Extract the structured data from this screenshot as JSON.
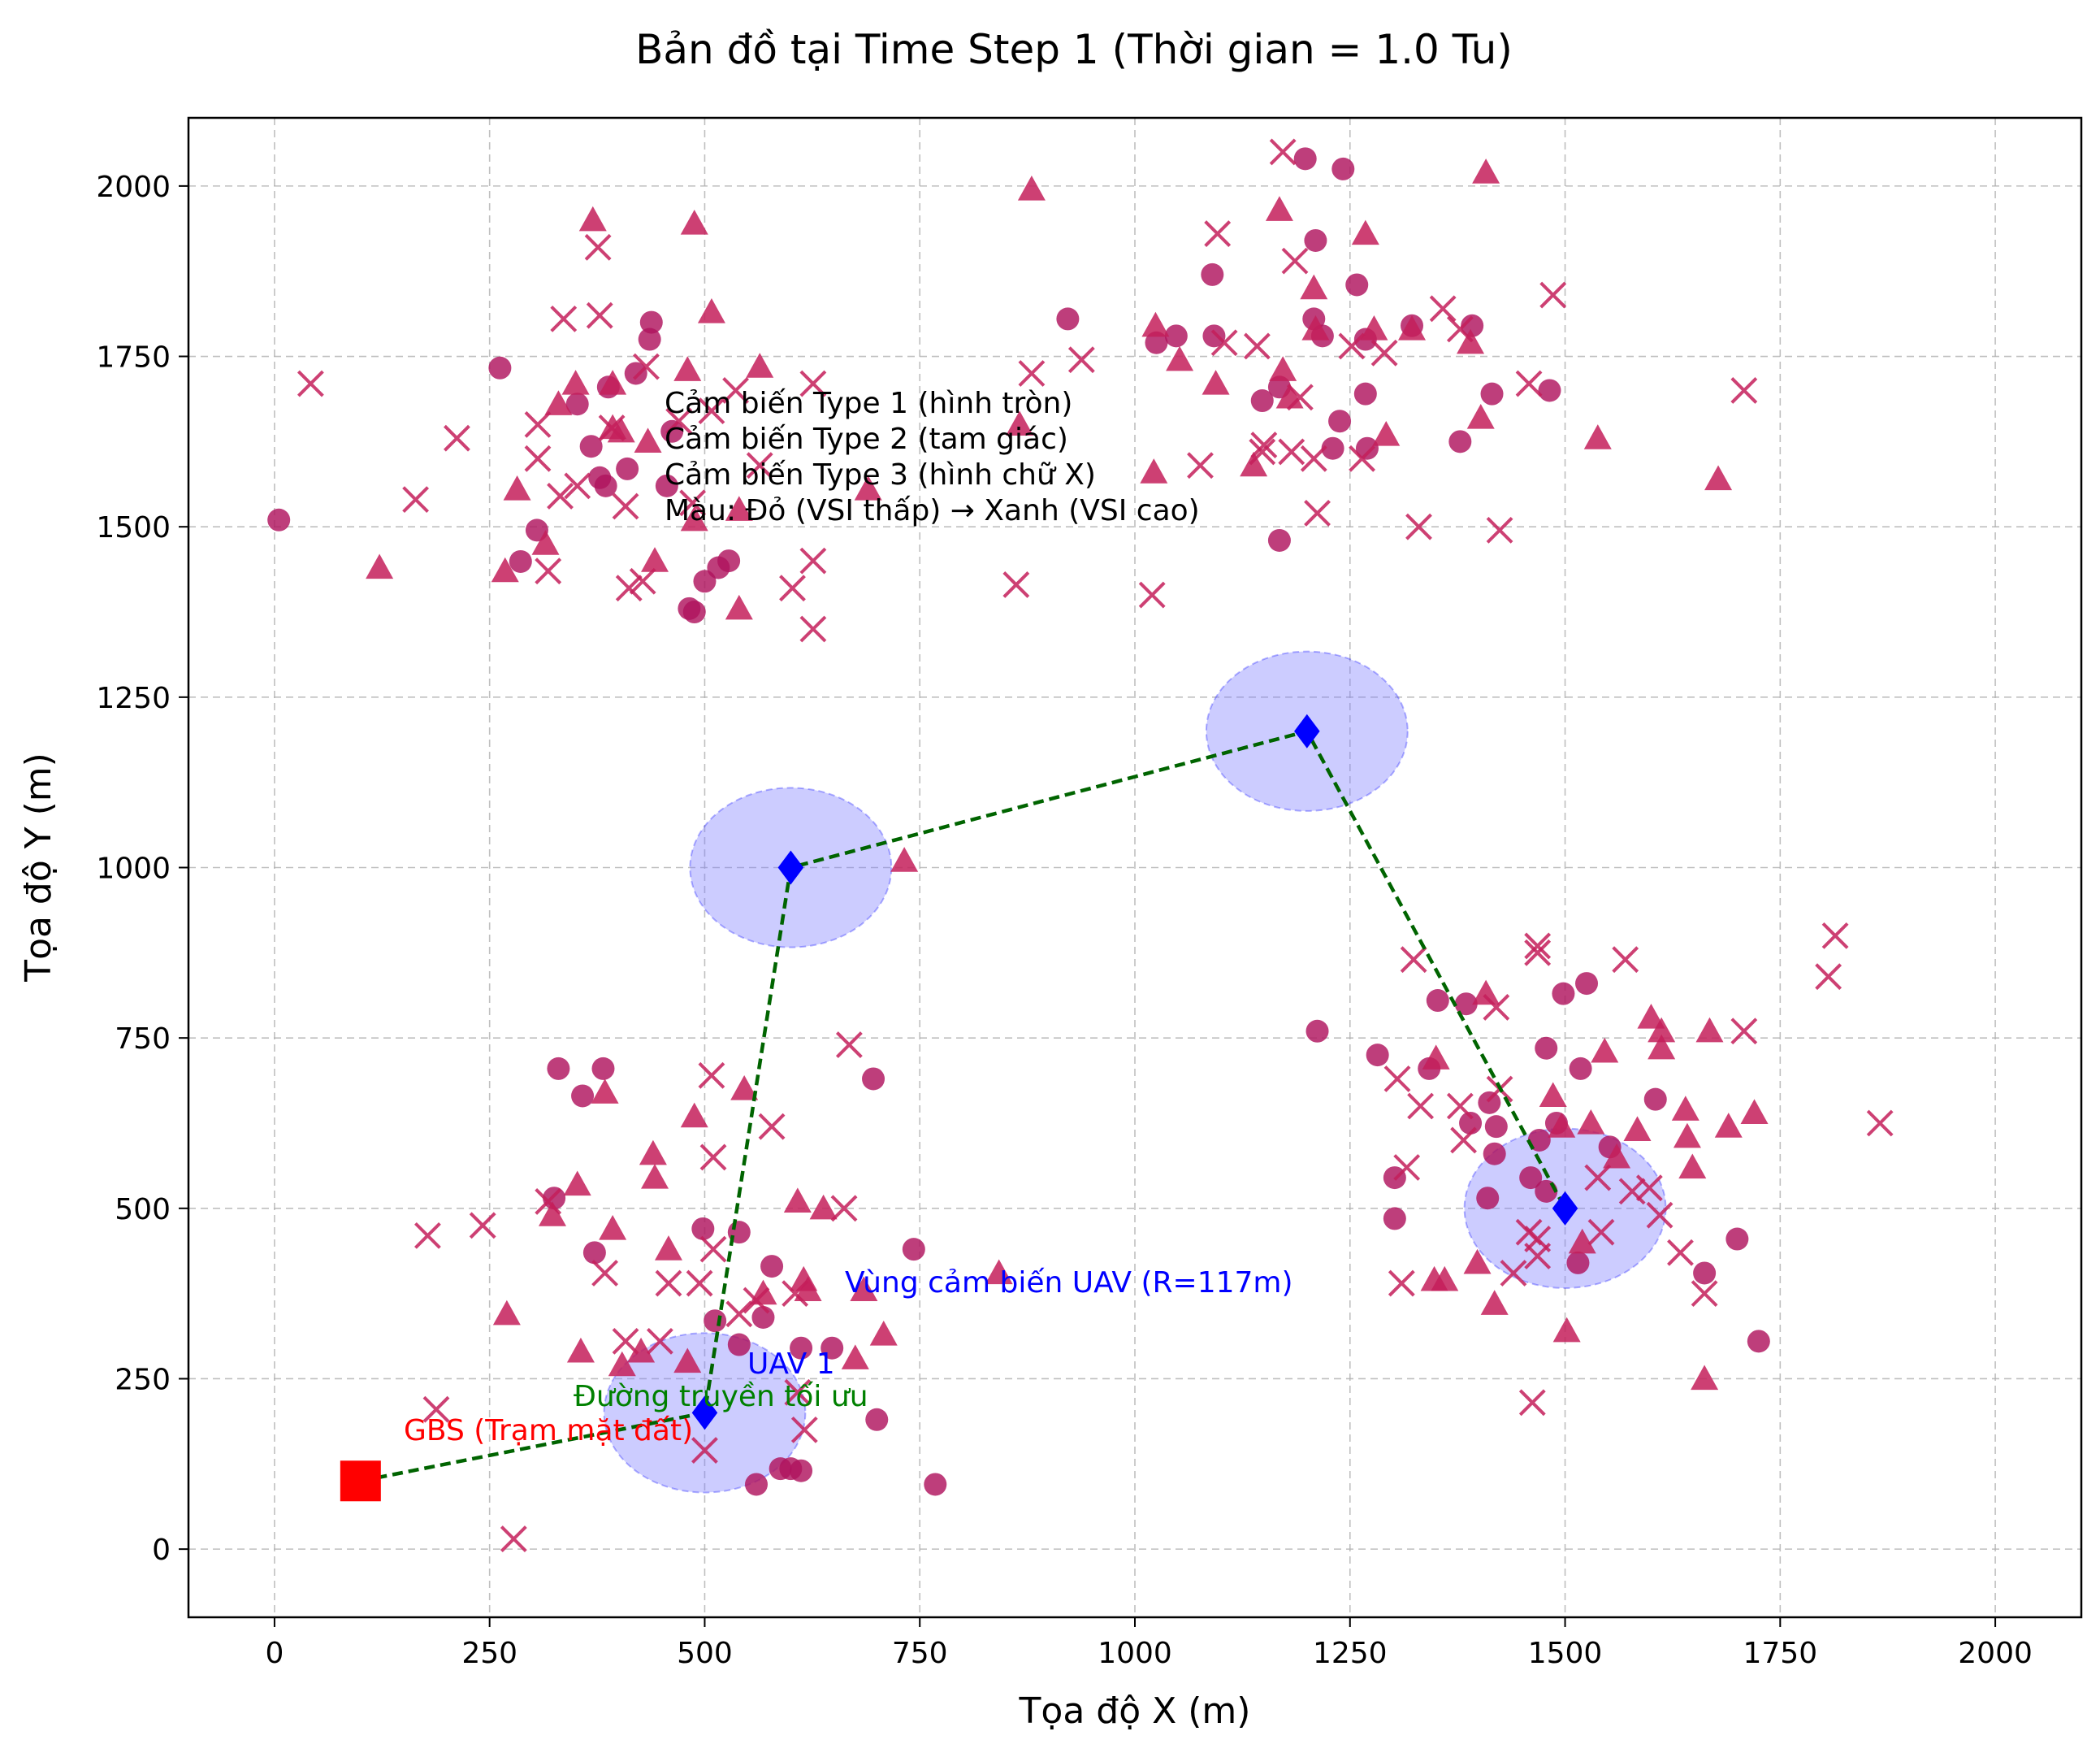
{
  "chart_data": {
    "type": "scatter",
    "title": "Bản đồ tại Time Step 1 (Thời gian = 1.0 Tu)",
    "xlabel": "Tọa độ X (m)",
    "ylabel": "Tọa độ Y (m)",
    "xlim": [
      -100,
      2100
    ],
    "ylim": [
      -100,
      2100
    ],
    "xticks": [
      0,
      250,
      500,
      750,
      1000,
      1250,
      1500,
      1750,
      2000
    ],
    "yticks": [
      0,
      250,
      500,
      750,
      1000,
      1250,
      1500,
      1750,
      2000
    ],
    "grid": true,
    "colors": {
      "sensor": "#c0134f",
      "sensor_fill": "#c41e5a",
      "uav": "#0000ff",
      "coverage": "#8080ff",
      "path": "#006400",
      "gbs": "#ff0000"
    },
    "legend": [
      "Cảm biến Type 1 (hình tròn)",
      "Cảm biến Type 2 (tam giác)",
      "Cảm biến Type 3 (hình chữ X)",
      "Màu: Đỏ (VSI thấp) → Xanh (VSI cao)"
    ],
    "annotations": {
      "gbs_label": "GBS (Trạm mặt đất)",
      "uav_label": "UAV 1",
      "path_label": "Đường truyền tối ưu",
      "coverage_label": "Vùng cảm biến UAV (R=117m)"
    },
    "gbs": [
      100,
      100
    ],
    "uav_path": [
      [
        100,
        100
      ],
      [
        500,
        200
      ],
      [
        600,
        1000
      ],
      [
        1200,
        1200
      ],
      [
        1500,
        500
      ]
    ],
    "uav_positions": [
      [
        500,
        200
      ],
      [
        600,
        1000
      ],
      [
        1200,
        1200
      ],
      [
        1500,
        500
      ]
    ],
    "uav_radius": 117,
    "sensors_type1": [
      [
        5,
        1510
      ],
      [
        262,
        1733
      ],
      [
        286,
        1449
      ],
      [
        305,
        1495
      ],
      [
        352,
        1680
      ],
      [
        368,
        1618
      ],
      [
        378,
        1572
      ],
      [
        385,
        1560
      ],
      [
        388,
        1705
      ],
      [
        410,
        1585
      ],
      [
        420,
        1725
      ],
      [
        436,
        1775
      ],
      [
        438,
        1800
      ],
      [
        456,
        1560
      ],
      [
        462,
        1640
      ],
      [
        482,
        1380
      ],
      [
        488,
        1375
      ],
      [
        500,
        1420
      ],
      [
        516,
        1440
      ],
      [
        528,
        1450
      ],
      [
        1198,
        2040
      ],
      [
        1242,
        2025
      ],
      [
        1090,
        1870
      ],
      [
        1210,
        1920
      ],
      [
        1258,
        1855
      ],
      [
        1208,
        1805
      ],
      [
        1218,
        1780
      ],
      [
        1268,
        1775
      ],
      [
        1268,
        1695
      ],
      [
        1148,
        1685
      ],
      [
        1238,
        1655
      ],
      [
        1230,
        1615
      ],
      [
        1270,
        1615
      ],
      [
        1322,
        1795
      ],
      [
        1392,
        1795
      ],
      [
        1415,
        1695
      ],
      [
        1378,
        1625
      ],
      [
        1482,
        1700
      ],
      [
        1168,
        1480
      ],
      [
        1092,
        1780
      ],
      [
        1048,
        1780
      ],
      [
        1025,
        1770
      ],
      [
        922,
        1805
      ],
      [
        1168,
        1705
      ],
      [
        330,
        705
      ],
      [
        382,
        705
      ],
      [
        358,
        665
      ],
      [
        372,
        435
      ],
      [
        498,
        470
      ],
      [
        540,
        465
      ],
      [
        578,
        415
      ],
      [
        512,
        335
      ],
      [
        540,
        300
      ],
      [
        568,
        340
      ],
      [
        612,
        295
      ],
      [
        648,
        295
      ],
      [
        696,
        690
      ],
      [
        743,
        440
      ],
      [
        700,
        190
      ],
      [
        768,
        95
      ],
      [
        560,
        95
      ],
      [
        588,
        118
      ],
      [
        600,
        118
      ],
      [
        612,
        115
      ],
      [
        1212,
        760
      ],
      [
        1282,
        725
      ],
      [
        1342,
        705
      ],
      [
        1385,
        800
      ],
      [
        1498,
        815
      ],
      [
        1525,
        830
      ],
      [
        1478,
        735
      ],
      [
        1518,
        705
      ],
      [
        1412,
        655
      ],
      [
        1420,
        620
      ],
      [
        1390,
        625
      ],
      [
        1490,
        625
      ],
      [
        1605,
        660
      ],
      [
        1418,
        580
      ],
      [
        1460,
        545
      ],
      [
        1478,
        525
      ],
      [
        1410,
        515
      ],
      [
        1302,
        545
      ],
      [
        1302,
        485
      ],
      [
        1662,
        405
      ],
      [
        1725,
        305
      ],
      [
        1700,
        455
      ],
      [
        1515,
        420
      ],
      [
        1552,
        590
      ],
      [
        1470,
        600
      ],
      [
        1352,
        805
      ],
      [
        325,
        515
      ]
    ],
    "sensors_type2": [
      [
        122,
        1440
      ],
      [
        268,
        1435
      ],
      [
        282,
        1555
      ],
      [
        315,
        1475
      ],
      [
        330,
        1680
      ],
      [
        350,
        1710
      ],
      [
        370,
        1950
      ],
      [
        393,
        1645
      ],
      [
        393,
        1710
      ],
      [
        403,
        1640
      ],
      [
        434,
        1625
      ],
      [
        442,
        1450
      ],
      [
        480,
        1730
      ],
      [
        488,
        1510
      ],
      [
        488,
        1945
      ],
      [
        508,
        1815
      ],
      [
        540,
        1380
      ],
      [
        564,
        1735
      ],
      [
        540,
        1525
      ],
      [
        690,
        1555
      ],
      [
        866,
        1650
      ],
      [
        880,
        1995
      ],
      [
        1024,
        1795
      ],
      [
        1052,
        1745
      ],
      [
        1094,
        1710
      ],
      [
        1138,
        1590
      ],
      [
        1168,
        1965
      ],
      [
        1172,
        1730
      ],
      [
        1208,
        1850
      ],
      [
        1210,
        1790
      ],
      [
        1268,
        1930
      ],
      [
        1278,
        1790
      ],
      [
        1292,
        1635
      ],
      [
        1322,
        1790
      ],
      [
        1390,
        1770
      ],
      [
        1402,
        1660
      ],
      [
        1408,
        2020
      ],
      [
        1538,
        1630
      ],
      [
        1678,
        1570
      ],
      [
        1180,
        1690
      ],
      [
        1022,
        1580
      ],
      [
        270,
        345
      ],
      [
        323,
        490
      ],
      [
        352,
        535
      ],
      [
        356,
        290
      ],
      [
        384,
        670
      ],
      [
        393,
        470
      ],
      [
        404,
        270
      ],
      [
        426,
        290
      ],
      [
        440,
        580
      ],
      [
        442,
        545
      ],
      [
        458,
        440
      ],
      [
        488,
        635
      ],
      [
        546,
        675
      ],
      [
        568,
        375
      ],
      [
        608,
        510
      ],
      [
        620,
        380
      ],
      [
        638,
        500
      ],
      [
        685,
        380
      ],
      [
        708,
        315
      ],
      [
        732,
        1010
      ],
      [
        842,
        405
      ],
      [
        1360,
        395
      ],
      [
        1350,
        720
      ],
      [
        1348,
        395
      ],
      [
        1398,
        420
      ],
      [
        1418,
        360
      ],
      [
        1408,
        815
      ],
      [
        1486,
        665
      ],
      [
        1496,
        620
      ],
      [
        1502,
        320
      ],
      [
        1520,
        450
      ],
      [
        1530,
        625
      ],
      [
        1546,
        730
      ],
      [
        1584,
        615
      ],
      [
        1600,
        780
      ],
      [
        1612,
        735
      ],
      [
        1612,
        760
      ],
      [
        1640,
        645
      ],
      [
        1642,
        605
      ],
      [
        1648,
        560
      ],
      [
        1662,
        250
      ],
      [
        1668,
        760
      ],
      [
        1720,
        640
      ],
      [
        1560,
        575
      ],
      [
        1690,
        620
      ],
      [
        615,
        395
      ],
      [
        480,
        275
      ],
      [
        675,
        280
      ]
    ],
    "sensors_type3": [
      [
        42,
        1710
      ],
      [
        164,
        1540
      ],
      [
        212,
        1630
      ],
      [
        306,
        1650
      ],
      [
        306,
        1600
      ],
      [
        318,
        1435
      ],
      [
        332,
        1545
      ],
      [
        336,
        1805
      ],
      [
        352,
        1560
      ],
      [
        376,
        1910
      ],
      [
        378,
        1810
      ],
      [
        392,
        1645
      ],
      [
        408,
        1530
      ],
      [
        412,
        1410
      ],
      [
        428,
        1420
      ],
      [
        432,
        1735
      ],
      [
        470,
        1655
      ],
      [
        486,
        1535
      ],
      [
        508,
        1670
      ],
      [
        536,
        1700
      ],
      [
        564,
        1590
      ],
      [
        602,
        1410
      ],
      [
        626,
        1450
      ],
      [
        626,
        1350
      ],
      [
        626,
        1710
      ],
      [
        862,
        1415
      ],
      [
        880,
        1725
      ],
      [
        1020,
        1400
      ],
      [
        1076,
        1590
      ],
      [
        1096,
        1930
      ],
      [
        1104,
        1770
      ],
      [
        1142,
        1765
      ],
      [
        1148,
        1610
      ],
      [
        1150,
        1620
      ],
      [
        1172,
        2050
      ],
      [
        1186,
        1890
      ],
      [
        1192,
        1690
      ],
      [
        1208,
        1600
      ],
      [
        1212,
        1520
      ],
      [
        1252,
        1765
      ],
      [
        1264,
        1600
      ],
      [
        1290,
        1755
      ],
      [
        1330,
        1500
      ],
      [
        1358,
        1820
      ],
      [
        1378,
        1790
      ],
      [
        1424,
        1495
      ],
      [
        1458,
        1710
      ],
      [
        1486,
        1840
      ],
      [
        1708,
        1700
      ],
      [
        938,
        1745
      ],
      [
        1182,
        1610
      ],
      [
        178,
        460
      ],
      [
        188,
        205
      ],
      [
        242,
        475
      ],
      [
        278,
        15
      ],
      [
        318,
        510
      ],
      [
        384,
        405
      ],
      [
        408,
        305
      ],
      [
        448,
        305
      ],
      [
        458,
        390
      ],
      [
        494,
        390
      ],
      [
        508,
        695
      ],
      [
        510,
        575
      ],
      [
        510,
        440
      ],
      [
        540,
        345
      ],
      [
        560,
        365
      ],
      [
        578,
        620
      ],
      [
        608,
        230
      ],
      [
        662,
        500
      ],
      [
        668,
        740
      ],
      [
        1310,
        390
      ],
      [
        1316,
        560
      ],
      [
        1324,
        865
      ],
      [
        1332,
        650
      ],
      [
        1378,
        650
      ],
      [
        1382,
        600
      ],
      [
        1420,
        795
      ],
      [
        1424,
        675
      ],
      [
        1440,
        405
      ],
      [
        1458,
        465
      ],
      [
        1462,
        215
      ],
      [
        1468,
        885
      ],
      [
        1468,
        875
      ],
      [
        1538,
        545
      ],
      [
        1542,
        465
      ],
      [
        1570,
        865
      ],
      [
        1578,
        525
      ],
      [
        1598,
        530
      ],
      [
        1610,
        490
      ],
      [
        1634,
        435
      ],
      [
        1662,
        375
      ],
      [
        1708,
        760
      ],
      [
        1806,
        840
      ],
      [
        1814,
        900
      ],
      [
        1866,
        625
      ],
      [
        1468,
        455
      ],
      [
        1468,
        430
      ],
      [
        500,
        145
      ],
      [
        616,
        175
      ],
      [
        605,
        375
      ],
      [
        1305,
        690
      ]
    ]
  }
}
